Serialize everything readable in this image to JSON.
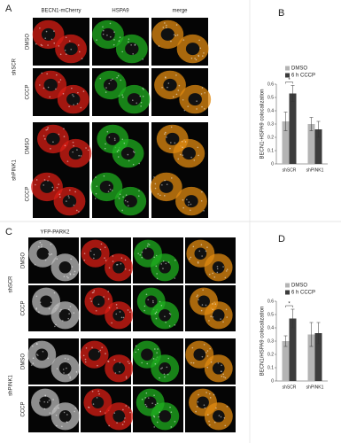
{
  "panels": {
    "A": {
      "label": "A",
      "columns": [
        "BECN1-mCherry",
        "HSPA9",
        "merge"
      ],
      "rows": [
        "DMSO",
        "CCCP",
        "DMSO",
        "CCCP"
      ],
      "groups": [
        "shSCR",
        "shPINK1"
      ]
    },
    "C": {
      "label": "C",
      "columns": [
        "YFP-PARK2"
      ],
      "rows": [
        "DMSO",
        "CCCP",
        "DMSO",
        "CCCP"
      ],
      "groups": [
        "shSCR",
        "shPINK1"
      ]
    }
  },
  "chart_data": [
    {
      "type": "bar",
      "label": "B",
      "ylabel": "BECN1-HSPA9 colocalization",
      "categories": [
        "shSCR",
        "shPINK1"
      ],
      "series": [
        {
          "name": "DMSO",
          "color": "#b4b4b4",
          "values": [
            0.32,
            0.3
          ],
          "errors": [
            0.07,
            0.05
          ]
        },
        {
          "name": "6 h CCCP",
          "color": "#3c3c3c",
          "values": [
            0.53,
            0.26
          ],
          "errors": [
            0.06,
            0.06
          ]
        }
      ],
      "ylim": [
        0,
        0.6
      ],
      "yticks": [
        0,
        0.1,
        0.2,
        0.3,
        0.4,
        0.5,
        0.6
      ],
      "annotation": "*"
    },
    {
      "type": "bar",
      "label": "D",
      "ylabel": "BECN1/HSPA9 colocalization",
      "categories": [
        "shSCR",
        "shPINK1"
      ],
      "series": [
        {
          "name": "DMSO",
          "color": "#b4b4b4",
          "values": [
            0.3,
            0.35
          ],
          "errors": [
            0.04,
            0.09
          ]
        },
        {
          "name": "6 h CCCP",
          "color": "#3c3c3c",
          "values": [
            0.47,
            0.36
          ],
          "errors": [
            0.07,
            0.08
          ]
        }
      ],
      "ylim": [
        0,
        0.6
      ],
      "yticks": [
        0,
        0.1,
        0.2,
        0.3,
        0.4,
        0.5,
        0.6
      ],
      "annotation": "*"
    }
  ]
}
